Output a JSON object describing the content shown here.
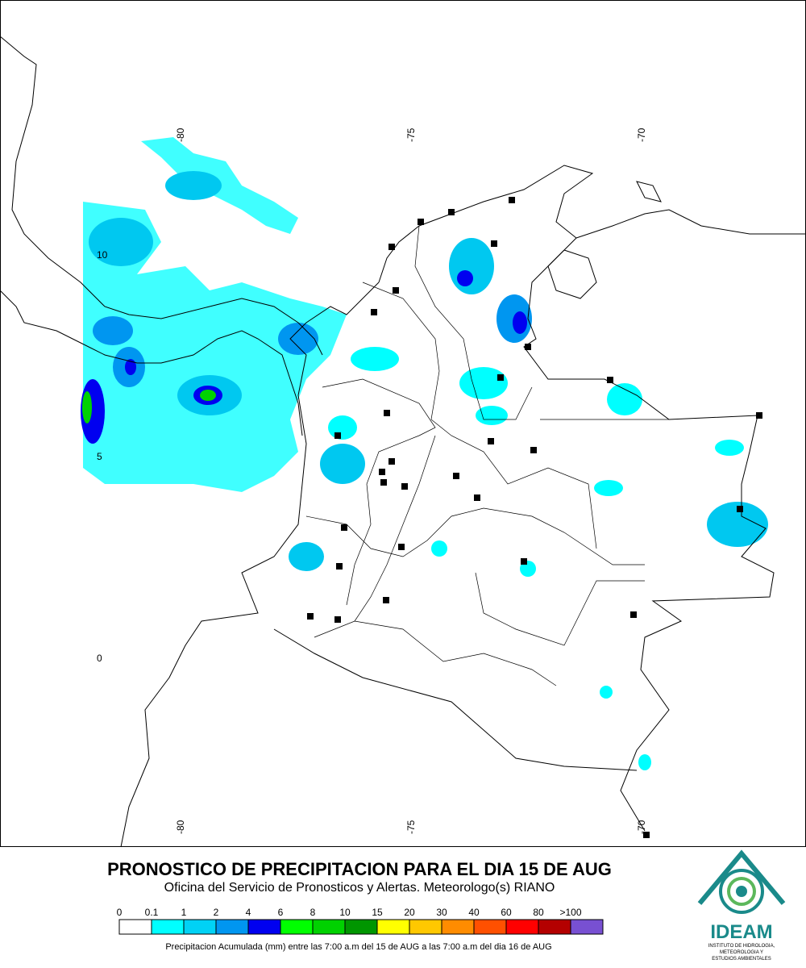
{
  "map": {
    "lon_labels_top": [
      "-80",
      "-75",
      "-70"
    ],
    "lon_labels_bottom": [
      "-80",
      "-75",
      "-70"
    ],
    "lat_labels": [
      "10",
      "5",
      "0"
    ]
  },
  "header": {
    "title": "PRONOSTICO DE PRECIPITACION PARA EL DIA 15 DE AUG",
    "subtitle": "Oficina del Servicio de Pronosticos y Alertas. Meteorologo(s) RIANO"
  },
  "legend": {
    "labels": [
      "0",
      "0.1",
      "1",
      "2",
      "4",
      "6",
      "8",
      "10",
      "15",
      "20",
      "30",
      "40",
      "60",
      "80",
      ">100"
    ],
    "colors": [
      "#ffffff",
      "#00ffff",
      "#00d2f5",
      "#0096f0",
      "#0000f0",
      "#00ff00",
      "#00d200",
      "#009600",
      "#ffff00",
      "#ffc800",
      "#ff8c00",
      "#ff5000",
      "#ff0000",
      "#b40000",
      "#7850d2"
    ],
    "caption": "Precipitacion Acumulada (mm) entre las 7:00 a.m del 15 de AUG a las 7:00 a.m del dia 16 de AUG"
  },
  "logo": {
    "name": "IDEAM",
    "lines": [
      "INSTITUTO DE HIDROLOGIA,",
      "METEOROLOGIA Y",
      "ESTUDIOS AMBIENTALES"
    ]
  }
}
